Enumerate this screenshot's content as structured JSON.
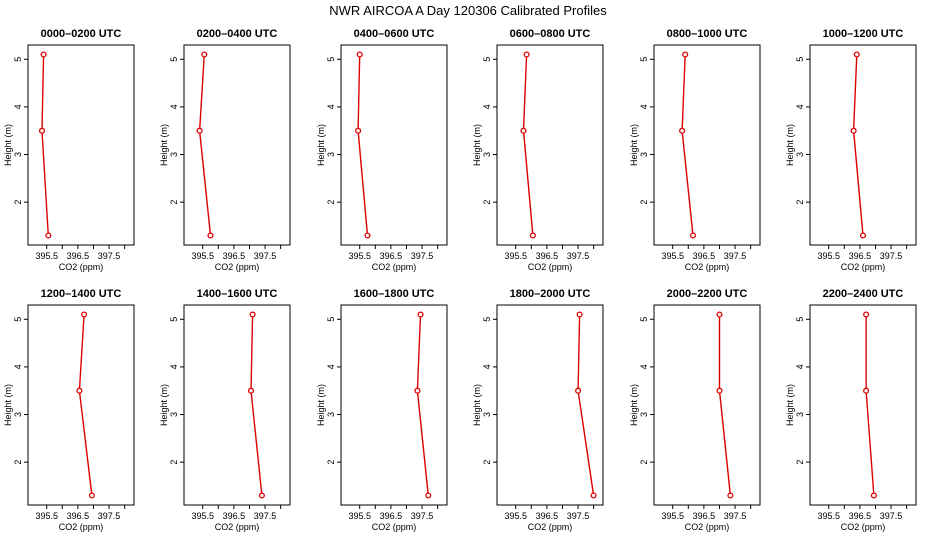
{
  "figure_title": "NWR AIRCOA A   Day 120306   Calibrated Profiles",
  "chart_data": [
    {
      "type": "line",
      "title": "0000–0200 UTC",
      "xlabel": "CO2 (ppm)",
      "ylabel": "Height (m)",
      "xlim": [
        394.9,
        398.3
      ],
      "ylim": [
        1.1,
        5.3
      ],
      "x_ticks": [
        "395.5",
        "396.5",
        "397.5"
      ],
      "y_ticks": [
        "2",
        "3",
        "4",
        "5"
      ],
      "series": [
        {
          "x": [
            395.4,
            395.35,
            395.55
          ],
          "y": [
            5.1,
            3.5,
            1.3
          ]
        }
      ]
    },
    {
      "type": "line",
      "title": "0200–0400 UTC",
      "xlabel": "CO2 (ppm)",
      "ylabel": "Height (m)",
      "xlim": [
        394.9,
        398.3
      ],
      "ylim": [
        1.1,
        5.3
      ],
      "x_ticks": [
        "395.5",
        "396.5",
        "397.5"
      ],
      "y_ticks": [
        "2",
        "3",
        "4",
        "5"
      ],
      "series": [
        {
          "x": [
            395.55,
            395.4,
            395.75
          ],
          "y": [
            5.1,
            3.5,
            1.3
          ]
        }
      ]
    },
    {
      "type": "line",
      "title": "0400–0600 UTC",
      "xlabel": "CO2 (ppm)",
      "ylabel": "Height (m)",
      "xlim": [
        394.9,
        398.3
      ],
      "ylim": [
        1.1,
        5.3
      ],
      "x_ticks": [
        "395.5",
        "396.5",
        "397.5"
      ],
      "y_ticks": [
        "2",
        "3",
        "4",
        "5"
      ],
      "series": [
        {
          "x": [
            395.5,
            395.45,
            395.75
          ],
          "y": [
            5.1,
            3.5,
            1.3
          ]
        }
      ]
    },
    {
      "type": "line",
      "title": "0600–0800 UTC",
      "xlabel": "CO2 (ppm)",
      "ylabel": "Height (m)",
      "xlim": [
        394.9,
        398.3
      ],
      "ylim": [
        1.1,
        5.3
      ],
      "x_ticks": [
        "395.5",
        "396.5",
        "397.5"
      ],
      "y_ticks": [
        "2",
        "3",
        "4",
        "5"
      ],
      "series": [
        {
          "x": [
            395.85,
            395.75,
            396.05
          ],
          "y": [
            5.1,
            3.5,
            1.3
          ]
        }
      ]
    },
    {
      "type": "line",
      "title": "0800–1000 UTC",
      "xlabel": "CO2 (ppm)",
      "ylabel": "Height (m)",
      "xlim": [
        394.9,
        398.3
      ],
      "ylim": [
        1.1,
        5.3
      ],
      "x_ticks": [
        "395.5",
        "396.5",
        "397.5"
      ],
      "y_ticks": [
        "2",
        "3",
        "4",
        "5"
      ],
      "series": [
        {
          "x": [
            395.9,
            395.8,
            396.15
          ],
          "y": [
            5.1,
            3.5,
            1.3
          ]
        }
      ]
    },
    {
      "type": "line",
      "title": "1000–1200 UTC",
      "xlabel": "CO2 (ppm)",
      "ylabel": "Height (m)",
      "xlim": [
        394.9,
        398.3
      ],
      "ylim": [
        1.1,
        5.3
      ],
      "x_ticks": [
        "395.5",
        "396.5",
        "397.5"
      ],
      "y_ticks": [
        "2",
        "3",
        "4",
        "5"
      ],
      "series": [
        {
          "x": [
            396.4,
            396.3,
            396.6
          ],
          "y": [
            5.1,
            3.5,
            1.3
          ]
        }
      ]
    },
    {
      "type": "line",
      "title": "1200–1400 UTC",
      "xlabel": "CO2 (ppm)",
      "ylabel": "Height (m)",
      "xlim": [
        394.9,
        398.3
      ],
      "ylim": [
        1.1,
        5.3
      ],
      "x_ticks": [
        "395.5",
        "396.5",
        "397.5"
      ],
      "y_ticks": [
        "2",
        "3",
        "4",
        "5"
      ],
      "series": [
        {
          "x": [
            396.7,
            396.55,
            396.95
          ],
          "y": [
            5.1,
            3.5,
            1.3
          ]
        }
      ]
    },
    {
      "type": "line",
      "title": "1400–1600 UTC",
      "xlabel": "CO2 (ppm)",
      "ylabel": "Height (m)",
      "xlim": [
        394.9,
        398.3
      ],
      "ylim": [
        1.1,
        5.3
      ],
      "x_ticks": [
        "395.5",
        "396.5",
        "397.5"
      ],
      "y_ticks": [
        "2",
        "3",
        "4",
        "5"
      ],
      "series": [
        {
          "x": [
            397.1,
            397.05,
            397.4
          ],
          "y": [
            5.1,
            3.5,
            1.3
          ]
        }
      ]
    },
    {
      "type": "line",
      "title": "1600–1800 UTC",
      "xlabel": "CO2 (ppm)",
      "ylabel": "Height (m)",
      "xlim": [
        394.9,
        398.3
      ],
      "ylim": [
        1.1,
        5.3
      ],
      "x_ticks": [
        "395.5",
        "396.5",
        "397.5"
      ],
      "y_ticks": [
        "2",
        "3",
        "4",
        "5"
      ],
      "series": [
        {
          "x": [
            397.45,
            397.35,
            397.7
          ],
          "y": [
            5.1,
            3.5,
            1.3
          ]
        }
      ]
    },
    {
      "type": "line",
      "title": "1800–2000 UTC",
      "xlabel": "CO2 (ppm)",
      "ylabel": "Height (m)",
      "xlim": [
        394.9,
        398.3
      ],
      "ylim": [
        1.1,
        5.3
      ],
      "x_ticks": [
        "395.5",
        "396.5",
        "397.5"
      ],
      "y_ticks": [
        "2",
        "3",
        "4",
        "5"
      ],
      "series": [
        {
          "x": [
            397.55,
            397.5,
            398.0
          ],
          "y": [
            5.1,
            3.5,
            1.3
          ]
        }
      ]
    },
    {
      "type": "line",
      "title": "2000–2200 UTC",
      "xlabel": "CO2 (ppm)",
      "ylabel": "Height (m)",
      "xlim": [
        394.9,
        398.3
      ],
      "ylim": [
        1.1,
        5.3
      ],
      "x_ticks": [
        "395.5",
        "396.5",
        "397.5"
      ],
      "y_ticks": [
        "2",
        "3",
        "4",
        "5"
      ],
      "series": [
        {
          "x": [
            397.0,
            397.0,
            397.35
          ],
          "y": [
            5.1,
            3.5,
            1.3
          ]
        }
      ]
    },
    {
      "type": "line",
      "title": "2200–2400 UTC",
      "xlabel": "CO2 (ppm)",
      "ylabel": "Height (m)",
      "xlim": [
        394.9,
        398.3
      ],
      "ylim": [
        1.1,
        5.3
      ],
      "x_ticks": [
        "395.5",
        "396.5",
        "397.5"
      ],
      "y_ticks": [
        "2",
        "3",
        "4",
        "5"
      ],
      "series": [
        {
          "x": [
            396.7,
            396.7,
            396.95
          ],
          "y": [
            5.1,
            3.5,
            1.3
          ]
        }
      ]
    }
  ],
  "colors": {
    "series": "#dd0000",
    "axis": "#000000"
  }
}
